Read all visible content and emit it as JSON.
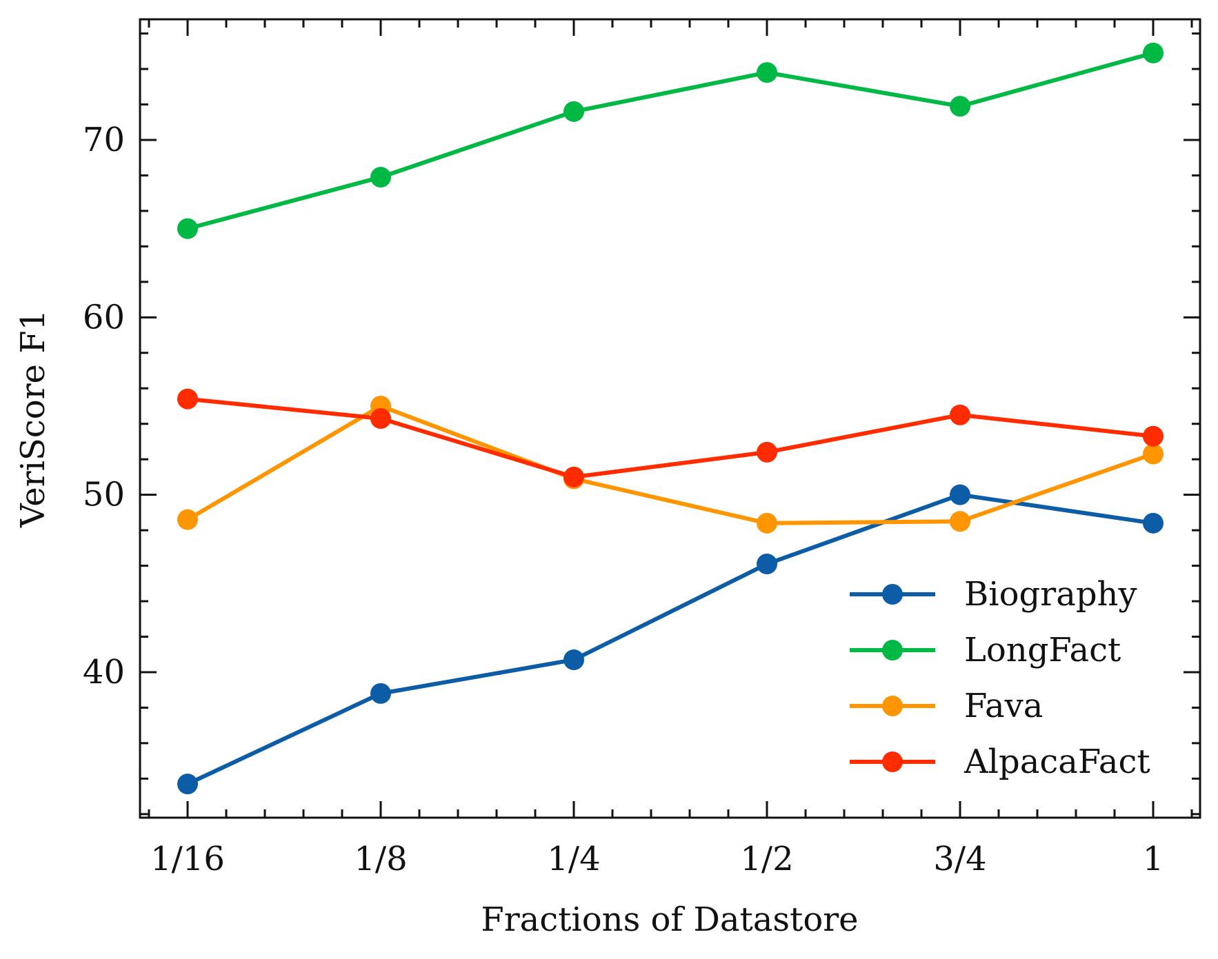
{
  "chart_data": {
    "type": "line",
    "title": "",
    "xlabel": "Fractions of Datastore",
    "ylabel": "VeriScore F1",
    "categories": [
      "1/16",
      "1/8",
      "1/4",
      "1/2",
      "3/4",
      "1"
    ],
    "ylim": [
      31.8,
      76.8
    ],
    "y_major_ticks": [
      40,
      50,
      60,
      70
    ],
    "y_minor_step": 2,
    "x_minor_per_interval": 4,
    "grid": false,
    "legend_position": "lower-right",
    "series": [
      {
        "name": "Biography",
        "color": "#0C5DA5",
        "values": [
          33.7,
          38.8,
          40.7,
          46.1,
          50.0,
          48.4
        ]
      },
      {
        "name": "LongFact",
        "color": "#00B945",
        "values": [
          65.0,
          67.9,
          71.6,
          73.8,
          71.9,
          74.9
        ]
      },
      {
        "name": "Fava",
        "color": "#FF9500",
        "values": [
          48.6,
          55.0,
          50.9,
          48.4,
          48.5,
          52.3
        ]
      },
      {
        "name": "AlpacaFact",
        "color": "#FF2C00",
        "values": [
          55.4,
          54.3,
          51.0,
          52.4,
          54.5,
          53.3
        ]
      }
    ]
  }
}
